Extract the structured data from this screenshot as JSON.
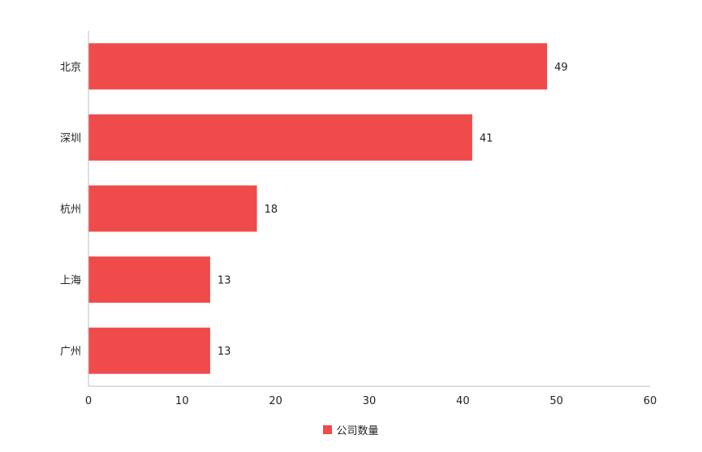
{
  "chart_data": {
    "type": "bar",
    "orientation": "horizontal",
    "categories": [
      "北京",
      "深圳",
      "杭州",
      "上海",
      "广州"
    ],
    "series": [
      {
        "name": "公司数量",
        "values": [
          49,
          41,
          18,
          13,
          13
        ]
      }
    ],
    "xlim": [
      0,
      60
    ],
    "xticks": [
      0,
      10,
      20,
      30,
      40,
      50,
      60
    ],
    "grid": false,
    "legend_position": "bottom",
    "bar_color": "#ef4b4b",
    "axis_color": "#bdbdbd",
    "text_color": "#222222"
  }
}
